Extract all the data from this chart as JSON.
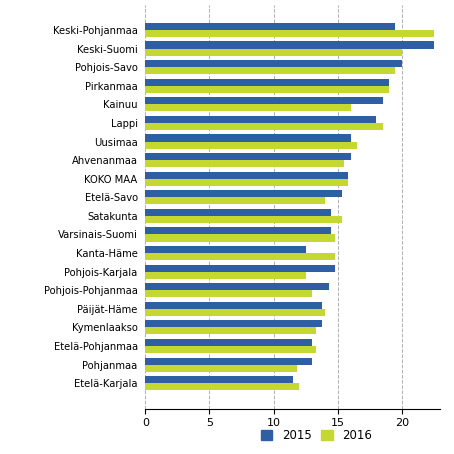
{
  "categories": [
    "Keski-Pohjanmaa",
    "Keski-Suomi",
    "Pohjois-Savo",
    "Pirkanmaa",
    "Kainuu",
    "Lappi",
    "Uusimaa",
    "Ahvenanmaa",
    "KOKO MAA",
    "Etelä-Savo",
    "Satakunta",
    "Varsinais-Suomi",
    "Kanta-Häme",
    "Pohjois-Karjala",
    "Pohjois-Pohjanmaa",
    "Päijät-Häme",
    "Kymenlaakso",
    "Etelä-Pohjanmaa",
    "Pohjanmaa",
    "Etelä-Karjala"
  ],
  "values_2015": [
    19.5,
    22.5,
    20.0,
    19.0,
    18.5,
    18.0,
    16.0,
    16.0,
    15.8,
    15.3,
    14.5,
    14.5,
    12.5,
    14.8,
    14.3,
    13.8,
    13.8,
    13.0,
    13.0,
    11.5
  ],
  "values_2016": [
    22.5,
    20.0,
    19.5,
    19.0,
    16.0,
    18.5,
    16.5,
    15.5,
    15.8,
    14.0,
    15.3,
    14.8,
    14.8,
    12.5,
    13.0,
    14.0,
    13.3,
    13.3,
    11.8,
    12.0
  ],
  "color_2015": "#2E5FA3",
  "color_2016": "#C5D832",
  "xlim": [
    0,
    23
  ],
  "xticks": [
    0,
    5,
    10,
    15,
    20
  ],
  "legend_labels": [
    "2015",
    "2016"
  ],
  "background_color": "#ffffff",
  "grid_color": "#b0b0b0"
}
